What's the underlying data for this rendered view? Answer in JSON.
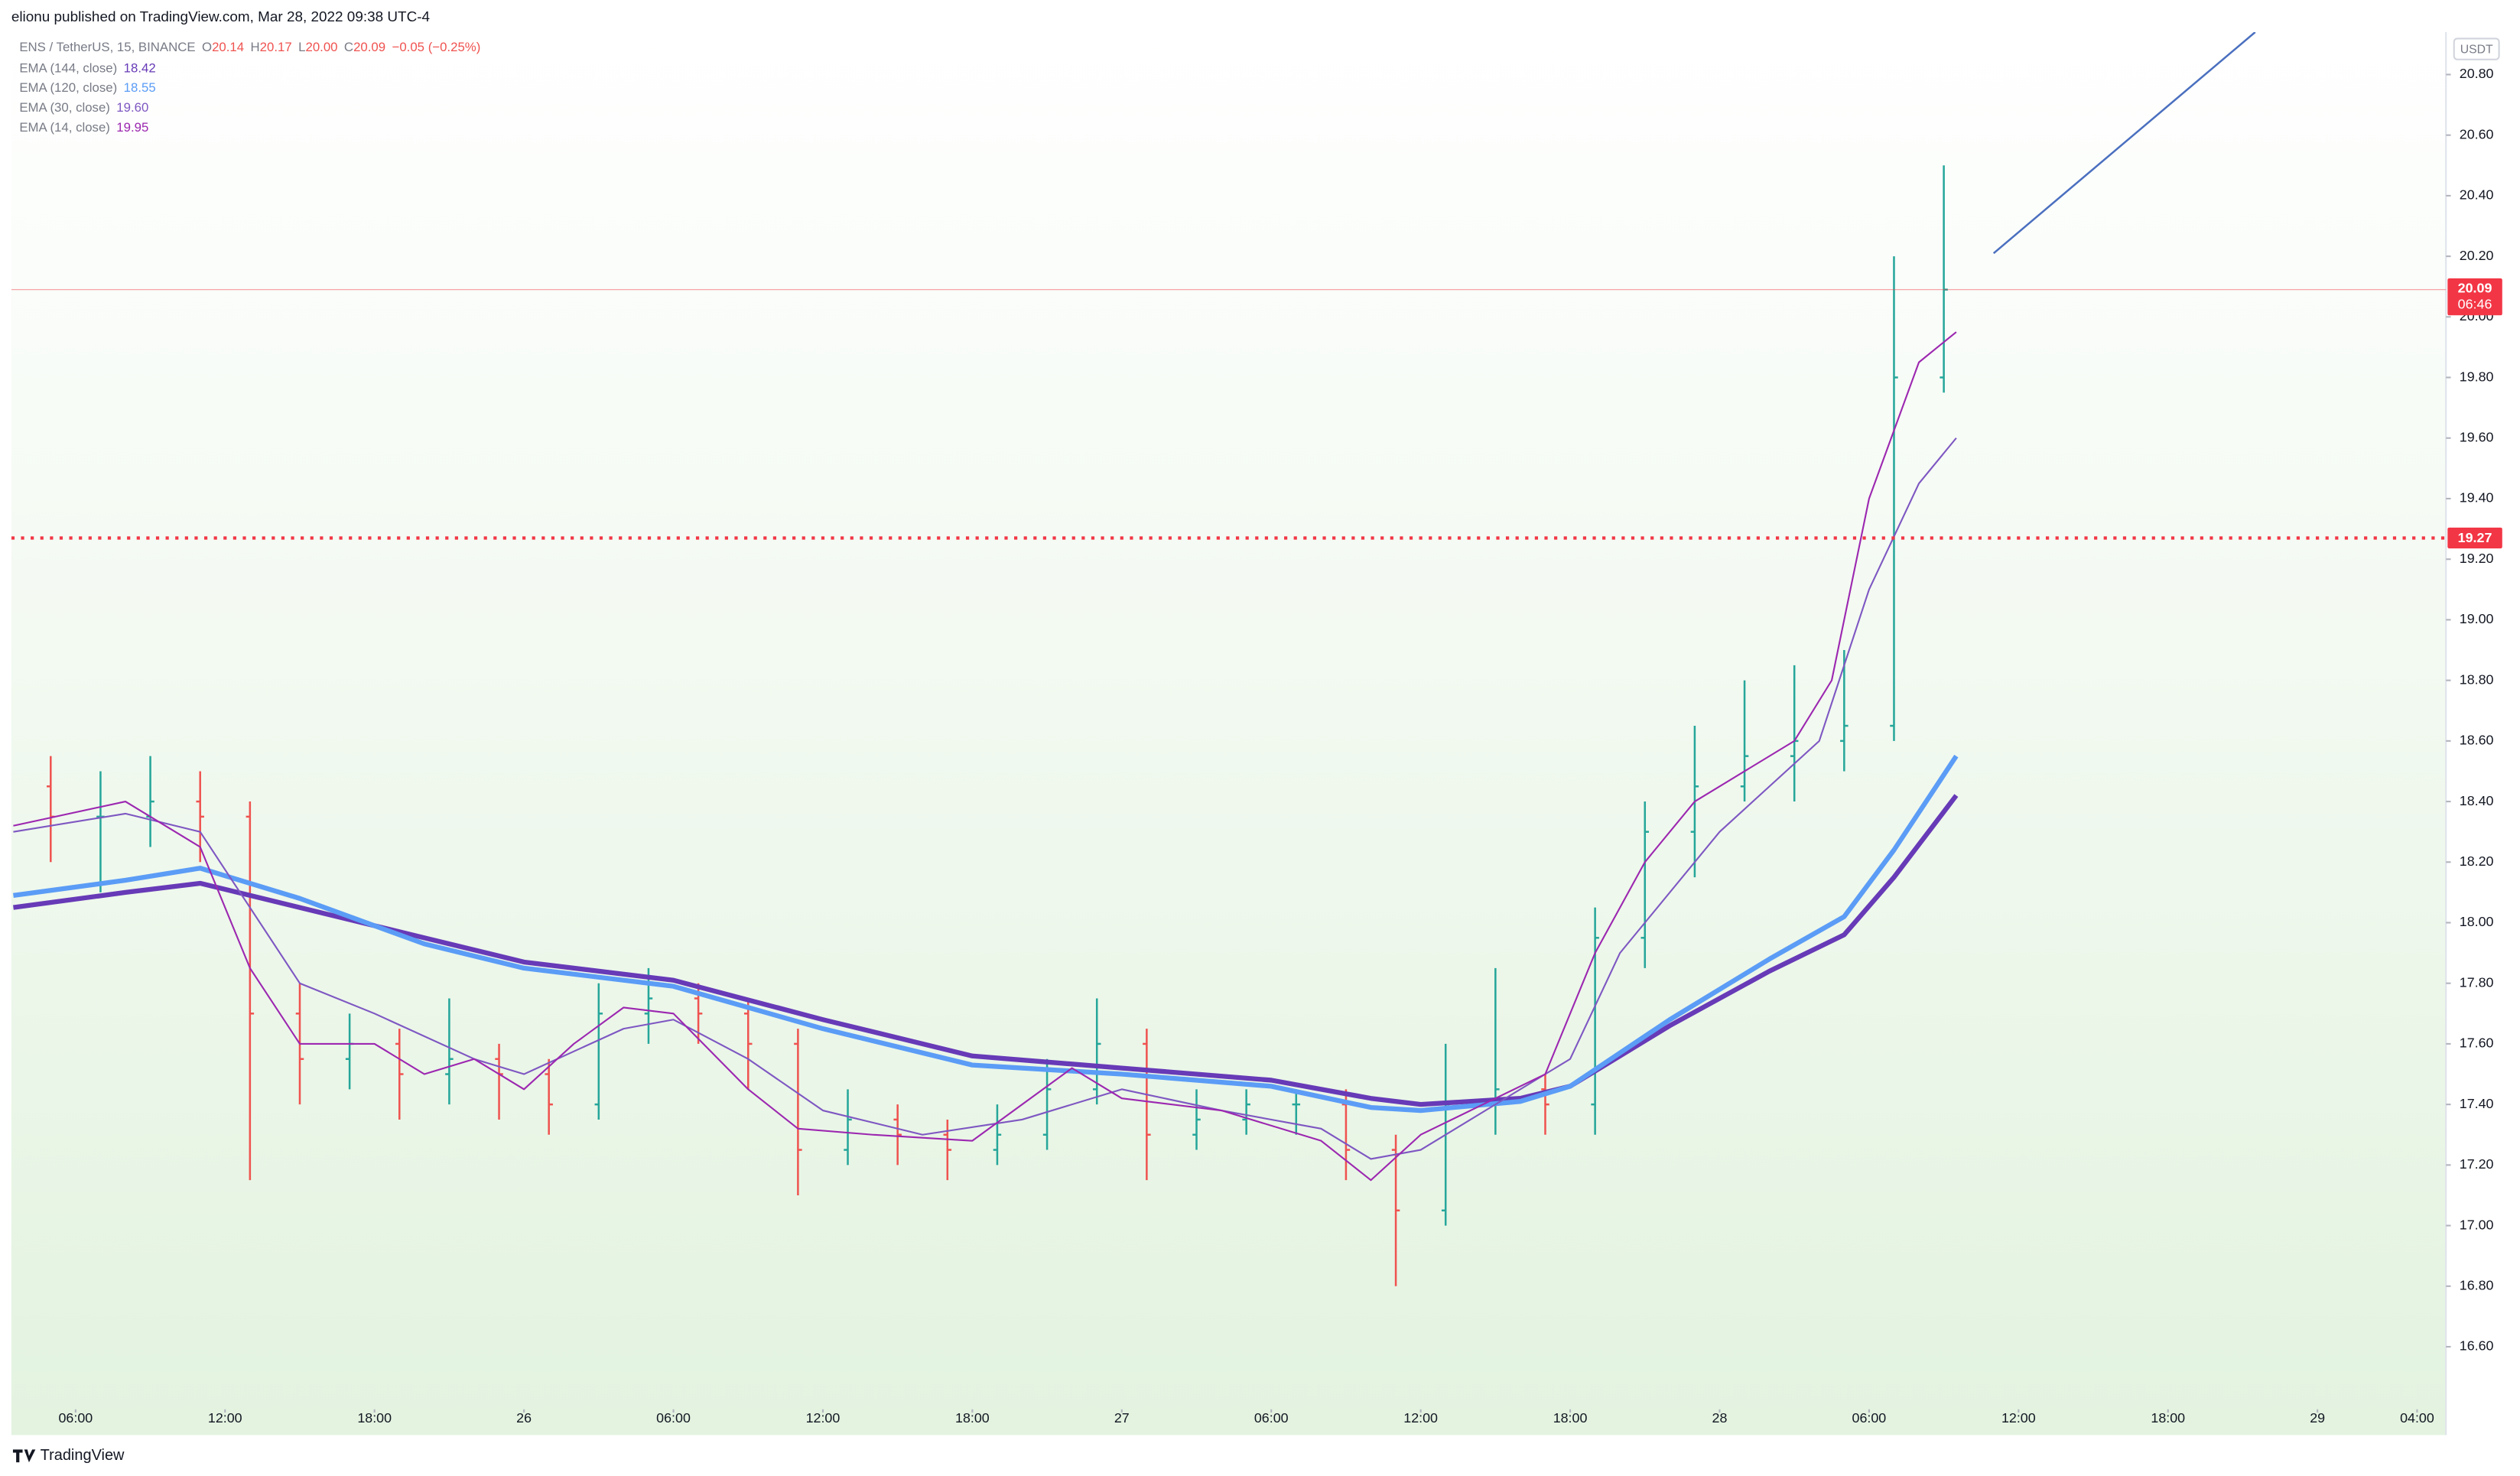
{
  "header": {
    "byline": "elionu published on TradingView.com, Mar 28, 2022 09:38 UTC-4",
    "brand": "TradingView"
  },
  "chart_data": {
    "type": "ohlc",
    "symbol": "ENS / TetherUS, 15, BINANCE",
    "ohlc_legend": [
      {
        "key": "O",
        "text": "20.14"
      },
      {
        "key": "H",
        "text": "20.17"
      },
      {
        "key": "L",
        "text": "20.00"
      },
      {
        "key": "C",
        "text": "20.09"
      }
    ],
    "change": "−0.05 (−0.25%)",
    "currency": "USDT",
    "up_color": "#26a69a",
    "down_color": "#ef5350",
    "x": [
      5,
      7,
      9,
      11,
      13,
      15,
      17,
      19,
      21,
      23,
      25,
      27,
      29,
      31,
      33,
      35,
      37,
      39,
      41,
      43,
      45,
      47,
      49,
      51,
      53,
      55,
      57,
      59,
      61,
      63,
      65,
      67,
      69,
      71,
      73,
      75,
      77,
      79,
      81
    ],
    "open": [
      18.45,
      18.35,
      18.35,
      18.4,
      18.35,
      17.7,
      17.55,
      17.6,
      17.5,
      17.55,
      17.5,
      17.4,
      17.7,
      17.75,
      17.7,
      17.6,
      17.25,
      17.35,
      17.3,
      17.25,
      17.3,
      17.45,
      17.6,
      17.3,
      17.35,
      17.4,
      17.4,
      17.25,
      17.05,
      17.4,
      17.45,
      17.4,
      17.95,
      18.3,
      18.45,
      18.55,
      18.6,
      18.65,
      19.8
    ],
    "high": [
      18.55,
      18.5,
      18.55,
      18.5,
      18.4,
      17.8,
      17.7,
      17.65,
      17.75,
      17.6,
      17.55,
      17.8,
      17.85,
      17.8,
      17.75,
      17.65,
      17.45,
      17.4,
      17.35,
      17.4,
      17.55,
      17.75,
      17.65,
      17.45,
      17.45,
      17.45,
      17.45,
      17.3,
      17.6,
      17.85,
      17.5,
      18.05,
      18.4,
      18.65,
      18.8,
      18.85,
      18.9,
      20.2,
      20.5
    ],
    "low": [
      18.2,
      18.1,
      18.25,
      18.2,
      17.15,
      17.4,
      17.45,
      17.35,
      17.4,
      17.35,
      17.3,
      17.35,
      17.6,
      17.6,
      17.45,
      17.1,
      17.2,
      17.2,
      17.15,
      17.2,
      17.25,
      17.4,
      17.15,
      17.25,
      17.3,
      17.3,
      17.15,
      16.8,
      17.0,
      17.3,
      17.3,
      17.3,
      17.85,
      18.15,
      18.4,
      18.4,
      18.5,
      18.6,
      19.75
    ],
    "close": [
      18.35,
      18.35,
      18.4,
      18.35,
      17.7,
      17.55,
      17.6,
      17.5,
      17.55,
      17.5,
      17.4,
      17.7,
      17.75,
      17.7,
      17.6,
      17.25,
      17.35,
      17.3,
      17.25,
      17.3,
      17.45,
      17.6,
      17.3,
      17.35,
      17.4,
      17.4,
      17.25,
      17.05,
      17.4,
      17.45,
      17.4,
      17.95,
      18.3,
      18.45,
      18.55,
      18.6,
      18.65,
      19.8,
      20.09
    ],
    "series": [
      {
        "name": "EMA (144, close)",
        "legend_value": "18.42",
        "color": "#673ab7",
        "width": 3,
        "x": [
          3.5,
          8,
          11,
          15,
          20,
          24,
          30,
          36,
          42,
          48,
          54,
          58,
          60,
          64,
          66,
          70,
          74,
          77,
          79,
          81.5
        ],
        "values": [
          18.05,
          18.1,
          18.13,
          18.05,
          17.95,
          17.87,
          17.81,
          17.68,
          17.56,
          17.52,
          17.48,
          17.42,
          17.4,
          17.42,
          17.46,
          17.66,
          17.84,
          17.96,
          18.15,
          18.42
        ]
      },
      {
        "name": "EMA (120, close)",
        "legend_value": "18.55",
        "color": "#5b9cf6",
        "width": 3,
        "x": [
          3.5,
          8,
          11,
          15,
          20,
          24,
          30,
          36,
          42,
          48,
          54,
          58,
          60,
          64,
          66,
          70,
          74,
          77,
          79,
          81.5
        ],
        "values": [
          18.09,
          18.14,
          18.18,
          18.08,
          17.93,
          17.85,
          17.79,
          17.65,
          17.53,
          17.5,
          17.46,
          17.39,
          17.38,
          17.41,
          17.46,
          17.68,
          17.88,
          18.02,
          18.24,
          18.55
        ]
      },
      {
        "name": "EMA (30, close)",
        "legend_value": "19.60",
        "color": "#7e57c2",
        "width": 1,
        "x": [
          3.5,
          8,
          11,
          13,
          15,
          18,
          22,
          24,
          28,
          30,
          33,
          36,
          40,
          44,
          48,
          52,
          56,
          58,
          60,
          63,
          66,
          68,
          70,
          72,
          74,
          76,
          78,
          80,
          81.5
        ],
        "values": [
          18.3,
          18.36,
          18.3,
          18.05,
          17.8,
          17.7,
          17.55,
          17.5,
          17.65,
          17.68,
          17.55,
          17.38,
          17.3,
          17.35,
          17.45,
          17.38,
          17.32,
          17.22,
          17.25,
          17.4,
          17.55,
          17.9,
          18.1,
          18.3,
          18.45,
          18.6,
          19.1,
          19.45,
          19.6
        ]
      },
      {
        "name": "EMA (14, close)",
        "legend_value": "19.95",
        "color": "#9c27b0",
        "width": 1,
        "x": [
          3.5,
          8,
          11,
          13,
          15,
          18,
          20,
          22,
          24,
          26,
          28,
          30,
          33,
          35,
          38,
          42,
          44,
          46,
          48,
          52,
          56,
          58,
          60,
          63,
          65,
          67,
          69,
          71,
          73,
          75,
          76.5,
          78,
          80,
          81.5
        ],
        "values": [
          18.32,
          18.4,
          18.25,
          17.85,
          17.6,
          17.6,
          17.5,
          17.55,
          17.45,
          17.6,
          17.72,
          17.7,
          17.45,
          17.32,
          17.3,
          17.28,
          17.4,
          17.52,
          17.42,
          17.38,
          17.28,
          17.15,
          17.3,
          17.42,
          17.5,
          17.9,
          18.2,
          18.4,
          18.5,
          18.6,
          18.8,
          19.4,
          19.85,
          19.95
        ]
      }
    ],
    "hline": {
      "value": 19.27,
      "label": "19.27",
      "color": "#f23645"
    },
    "last_price": {
      "value": 20.09,
      "label": "20.09",
      "countdown": "06:46",
      "color": "#f23645"
    },
    "trend_line": {
      "x": [
        83.0,
        93.5
      ],
      "values": [
        20.21,
        20.94
      ],
      "color": "#4a6fbf"
    },
    "xlim": [
      3.42,
      101.16
    ],
    "ylim": [
      16.42,
      20.94
    ],
    "xticks": [
      {
        "value": 6,
        "label": "06:00"
      },
      {
        "value": 12,
        "label": "12:00"
      },
      {
        "value": 18,
        "label": "18:00"
      },
      {
        "value": 24,
        "label": "26"
      },
      {
        "value": 30,
        "label": "06:00"
      },
      {
        "value": 36,
        "label": "12:00"
      },
      {
        "value": 42,
        "label": "18:00"
      },
      {
        "value": 48,
        "label": "27"
      },
      {
        "value": 54,
        "label": "06:00"
      },
      {
        "value": 60,
        "label": "12:00"
      },
      {
        "value": 66,
        "label": "18:00"
      },
      {
        "value": 72,
        "label": "28"
      },
      {
        "value": 78,
        "label": "06:00"
      },
      {
        "value": 84,
        "label": "12:00"
      },
      {
        "value": 90,
        "label": "18:00"
      },
      {
        "value": 96,
        "label": "29"
      },
      {
        "value": 100,
        "label": "04:00"
      }
    ],
    "yticks": [
      {
        "value": 16.6,
        "label": "16.60"
      },
      {
        "value": 16.8,
        "label": "16.80"
      },
      {
        "value": 17.0,
        "label": "17.00"
      },
      {
        "value": 17.2,
        "label": "17.20"
      },
      {
        "value": 17.4,
        "label": "17.40"
      },
      {
        "value": 17.6,
        "label": "17.60"
      },
      {
        "value": 17.8,
        "label": "17.80"
      },
      {
        "value": 18.0,
        "label": "18.00"
      },
      {
        "value": 18.2,
        "label": "18.20"
      },
      {
        "value": 18.4,
        "label": "18.40"
      },
      {
        "value": 18.6,
        "label": "18.60"
      },
      {
        "value": 18.8,
        "label": "18.80"
      },
      {
        "value": 19.0,
        "label": "19.00"
      },
      {
        "value": 19.2,
        "label": "19.20"
      },
      {
        "value": 19.4,
        "label": "19.40"
      },
      {
        "value": 19.6,
        "label": "19.60"
      },
      {
        "value": 19.8,
        "label": "19.80"
      },
      {
        "value": 20.0,
        "label": "20.00"
      },
      {
        "value": 20.2,
        "label": "20.20"
      },
      {
        "value": 20.4,
        "label": "20.40"
      },
      {
        "value": 20.6,
        "label": "20.60"
      },
      {
        "value": 20.8,
        "label": "20.80"
      }
    ]
  }
}
